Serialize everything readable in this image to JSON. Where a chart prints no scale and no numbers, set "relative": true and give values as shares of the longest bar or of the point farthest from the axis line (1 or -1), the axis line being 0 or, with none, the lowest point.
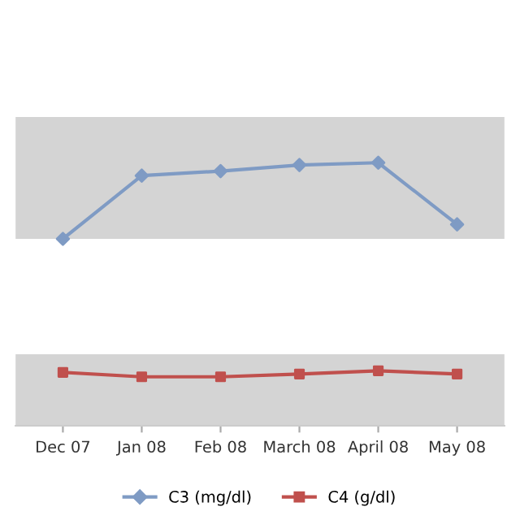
{
  "chart_data": [
    {
      "type": "line",
      "relative": true,
      "categories": [
        null,
        null,
        null,
        null,
        null,
        null
      ],
      "tick_labels": false,
      "marker": "diamond",
      "series": [
        {
          "name": "C3 (mg/dl)",
          "color": "#7f9bc4",
          "values": [
            0,
            0.83,
            0.89,
            0.97,
            1,
            0.19
          ]
        }
      ]
    },
    {
      "type": "line",
      "relative": true,
      "categories": [
        "Dec 07",
        "Jan 08",
        "Feb 08",
        "March 08",
        "April 08",
        "May 08"
      ],
      "tick_labels": "x",
      "marker": "square",
      "legend": "bottom",
      "series": [
        {
          "name": "C4 (g/dl)",
          "color": "#c0504d",
          "values": [
            0.97,
            0.89,
            0.89,
            0.94,
            1,
            0.94
          ]
        }
      ]
    }
  ]
}
